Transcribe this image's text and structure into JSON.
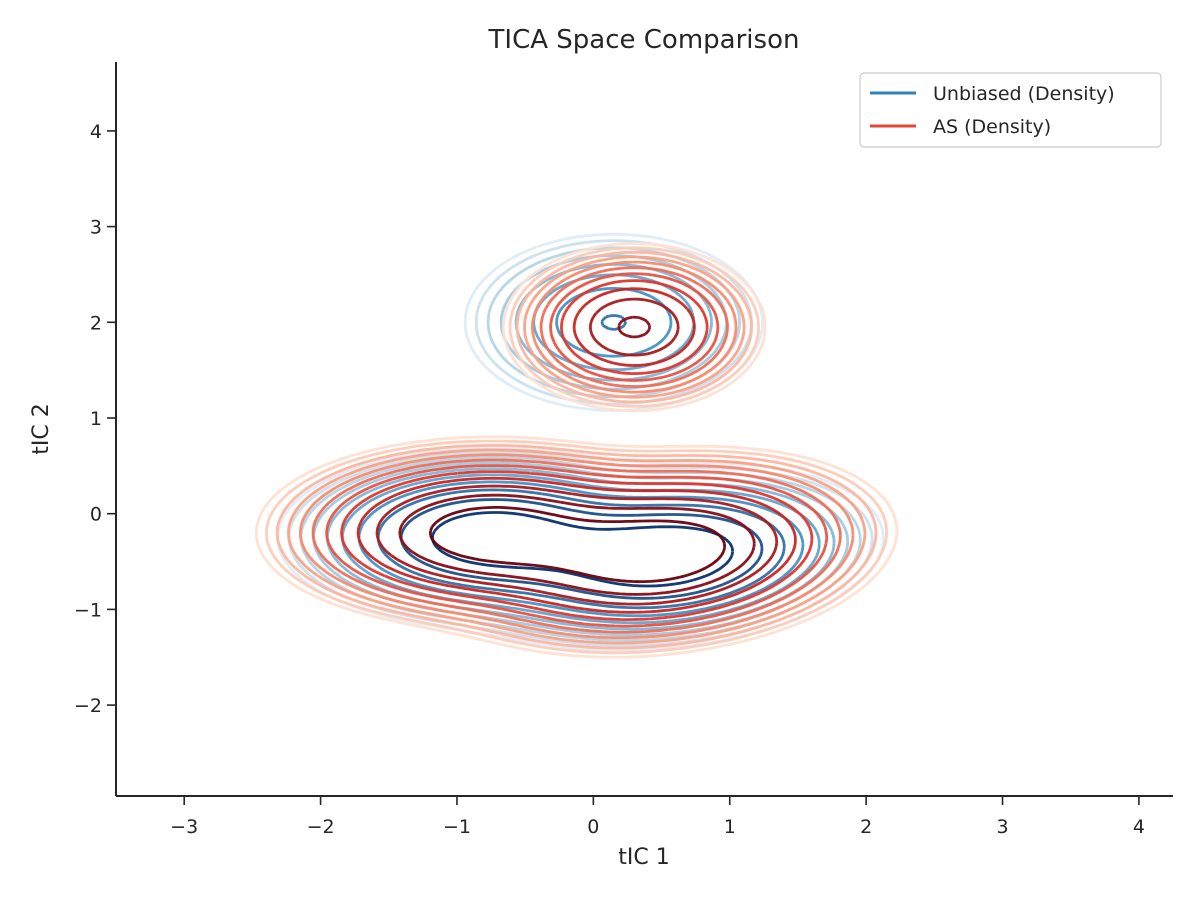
{
  "chart_data": {
    "type": "contour",
    "title": "TICA Space Comparison",
    "xlabel": "tIC 1",
    "ylabel": "tIC 2",
    "xlim": [
      -3.5,
      4.25
    ],
    "ylim": [
      -2.95,
      4.72
    ],
    "xticks": [
      -3,
      -2,
      -1,
      0,
      1,
      2,
      3,
      4
    ],
    "yticks": [
      -2,
      -1,
      0,
      1,
      2,
      3,
      4
    ],
    "xtick_labels": [
      "−3",
      "−2",
      "−1",
      "0",
      "1",
      "2",
      "3",
      "4"
    ],
    "ytick_labels": [
      "−2",
      "−1",
      "0",
      "1",
      "2",
      "3",
      "4"
    ],
    "grid": false,
    "legend_position": "top-right",
    "series": [
      {
        "name": "Unbiased (Density)",
        "color": "#3182bd",
        "colormap": [
          "#deebf7",
          "#9ecae1",
          "#4292c6",
          "#08306b"
        ],
        "components": [
          {
            "mu": [
              -0.75,
              -0.25
            ],
            "sigma": [
              0.55,
              0.33
            ],
            "rho": 0.0,
            "weight": 0.42
          },
          {
            "mu": [
              0.55,
              -0.45
            ],
            "sigma": [
              0.55,
              0.34
            ],
            "rho": 0.2,
            "weight": 0.45
          },
          {
            "mu": [
              0.15,
              2.0
            ],
            "sigma": [
              0.45,
              0.38
            ],
            "rho": 0.0,
            "weight": 0.13
          }
        ],
        "levels": 10
      },
      {
        "name": "AS (Density)",
        "color": "#e34a33",
        "colormap": [
          "#fee0d2",
          "#fc9272",
          "#de2d26",
          "#67000d"
        ],
        "components": [
          {
            "mu": [
              -0.75,
              -0.2
            ],
            "sigma": [
              0.55,
              0.32
            ],
            "rho": 0.0,
            "weight": 0.42
          },
          {
            "mu": [
              0.5,
              -0.4
            ],
            "sigma": [
              0.55,
              0.35
            ],
            "rho": 0.2,
            "weight": 0.46
          },
          {
            "mu": [
              0.3,
              1.95
            ],
            "sigma": [
              0.33,
              0.3
            ],
            "rho": 0.0,
            "weight": 0.12
          }
        ],
        "levels": 12
      }
    ]
  }
}
